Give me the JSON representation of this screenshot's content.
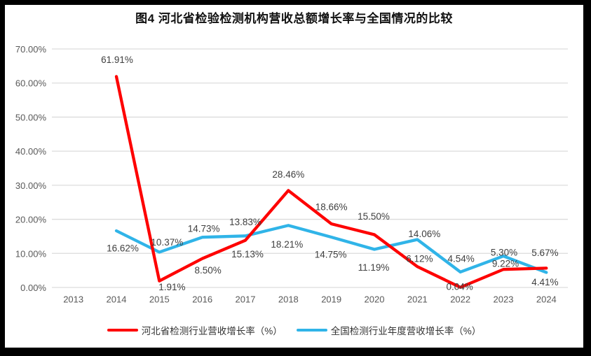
{
  "window": {
    "frame_color": "#000000",
    "page_background": "#FFFFFF"
  },
  "chart_data": {
    "type": "line",
    "title": "图4  河北省检验检测机构营收总额增长率与全国情况的比较",
    "categories": [
      "2013",
      "2014",
      "2015",
      "2016",
      "2017",
      "2018",
      "2019",
      "2020",
      "2021",
      "2022",
      "2023",
      "2024"
    ],
    "y_axis": {
      "min": 0,
      "max": 70,
      "step": 10,
      "tick_labels": [
        "0.00%",
        "10.00%",
        "20.00%",
        "30.00%",
        "40.00%",
        "50.00%",
        "60.00%",
        "70.00%"
      ]
    },
    "grid": true,
    "legend_position": "bottom",
    "colors": {
      "grid": "#DCDCDC",
      "axis_text": "#595959",
      "label_text": "#3F3F3F",
      "hebei_red": "#FE0000",
      "national_blue": "#30B4E8"
    },
    "series": [
      {
        "id": "hebei",
        "name": "河北省检测行业营收增长率（%）",
        "color": "#FE0000",
        "values": [
          null,
          61.91,
          1.91,
          8.5,
          13.83,
          28.46,
          18.66,
          15.5,
          6.12,
          0.04,
          5.3,
          5.67
        ],
        "labels": [
          null,
          "61.91%",
          "1.91%",
          "8.50%",
          "13.83%",
          "28.46%",
          "18.66%",
          "15.50%",
          "6.12%",
          "0.04%",
          "5.30%",
          "5.67%"
        ],
        "label_offsets": [
          null,
          [
            1,
            -24
          ],
          [
            18,
            9
          ],
          [
            8,
            17
          ],
          [
            0,
            -26
          ],
          [
            0,
            -23
          ],
          [
            0,
            -24
          ],
          [
            -1,
            -26
          ],
          [
            3,
            -11
          ],
          [
            -1,
            -1
          ],
          [
            1,
            -24
          ],
          [
            -2,
            -22
          ]
        ]
      },
      {
        "id": "national",
        "name": "全国检测行业年度营收增长率（%）",
        "color": "#30B4E8",
        "values": [
          null,
          16.62,
          10.37,
          14.73,
          15.13,
          18.21,
          14.75,
          11.19,
          14.06,
          4.54,
          9.22,
          4.41
        ],
        "labels": [
          null,
          "16.62%",
          "10.37%",
          "14.73%",
          "15.13%",
          "18.21%",
          "14.75%",
          "11.19%",
          "14.06%",
          "4.54%",
          "9.22%",
          "4.41%"
        ],
        "label_offsets": [
          null,
          [
            9,
            25
          ],
          [
            11,
            -14
          ],
          [
            2,
            -12
          ],
          [
            3,
            26
          ],
          [
            -2,
            27
          ],
          [
            -1,
            25
          ],
          [
            -1,
            26
          ],
          [
            10,
            -8
          ],
          [
            1,
            -19
          ],
          [
            3,
            11
          ],
          [
            -2,
            14
          ]
        ]
      }
    ]
  }
}
